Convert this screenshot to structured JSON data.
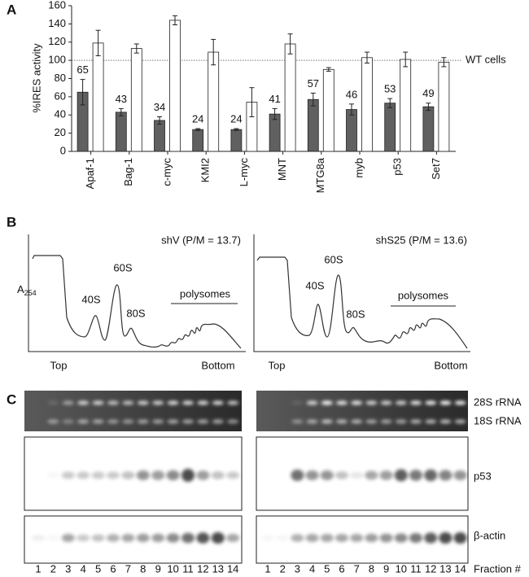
{
  "chart_data": {
    "type": "bar",
    "y_label": "%IRES activity",
    "categories": [
      "Apaf-1",
      "Bag-1",
      "c-myc",
      "KMI2",
      "L-myc",
      "MNT",
      "MTG8a",
      "myb",
      "p53",
      "Set7"
    ],
    "series": [
      {
        "color": "#606060",
        "values": [
          65,
          43,
          34,
          24,
          24,
          41,
          57,
          46,
          53,
          49
        ],
        "errors": [
          14,
          4,
          4,
          1,
          1,
          6,
          7,
          6,
          5,
          4
        ],
        "show_values": true
      },
      {
        "color": "#ffffff",
        "values": [
          119,
          113,
          144,
          109,
          54,
          118,
          90,
          103,
          101,
          98
        ],
        "errors": [
          14,
          5,
          5,
          14,
          16,
          11,
          2,
          6,
          8,
          5
        ],
        "show_values": false
      }
    ],
    "reference_line": {
      "value": 100,
      "label": "WT cells"
    },
    "ylim": [
      0,
      160
    ],
    "yticks": [
      0,
      20,
      40,
      60,
      80,
      100,
      120,
      140,
      160
    ]
  },
  "panel_labels": [
    "A",
    "B",
    "C"
  ],
  "profiles": [
    {
      "title": "shV (P/M = 13.7)",
      "peaks": [
        "40S",
        "60S",
        "80S"
      ],
      "polysomes": "polysomes",
      "top": "Top",
      "bottom": "Bottom"
    },
    {
      "title": "shS25 (P/M = 13.6)",
      "peaks": [
        "40S",
        "60S",
        "80S"
      ],
      "polysomes": "polysomes",
      "top": "Top",
      "bottom": "Bottom"
    }
  ],
  "profile_y_label": {
    "base": "A",
    "sub": "254"
  },
  "blots": {
    "rows": [
      "28S rRNA",
      "18S rRNA",
      "p53",
      "β-actin"
    ],
    "fractions": [
      "1",
      "2",
      "3",
      "4",
      "5",
      "6",
      "7",
      "8",
      "9",
      "10",
      "11",
      "12",
      "13",
      "14"
    ],
    "fraction_label": "Fraction #"
  }
}
